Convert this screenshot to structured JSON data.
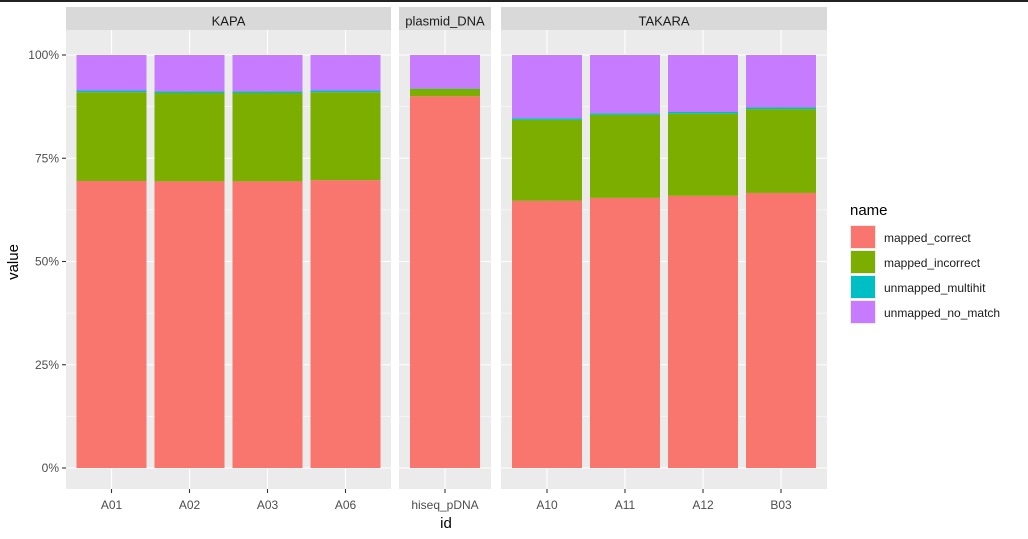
{
  "chart_data": {
    "type": "bar",
    "stacked": true,
    "position": "fill",
    "xlabel": "id",
    "ylabel": "value",
    "ylim": [
      0,
      1
    ],
    "y_ticks": [
      0,
      0.25,
      0.5,
      0.75,
      1.0
    ],
    "y_tick_labels": [
      "0%",
      "25%",
      "50%",
      "75%",
      "100%"
    ],
    "grid": true,
    "legend_position": "right",
    "legend": {
      "title": "name",
      "entries": [
        {
          "name": "mapped_correct",
          "color": "#F8766D"
        },
        {
          "name": "mapped_incorrect",
          "color": "#7CAE00"
        },
        {
          "name": "unmapped_multihit",
          "color": "#00BFC4"
        },
        {
          "name": "unmapped_no_match",
          "color": "#C77CFF"
        }
      ]
    },
    "facets": [
      {
        "label": "KAPA",
        "categories": [
          "A01",
          "A02",
          "A03",
          "A06"
        ],
        "series": [
          {
            "name": "mapped_correct",
            "values": [
              0.695,
              0.694,
              0.694,
              0.697
            ]
          },
          {
            "name": "mapped_incorrect",
            "values": [
              0.215,
              0.214,
              0.214,
              0.213
            ]
          },
          {
            "name": "unmapped_multihit",
            "values": [
              0.004,
              0.004,
              0.004,
              0.004
            ]
          },
          {
            "name": "unmapped_no_match",
            "values": [
              0.086,
              0.088,
              0.088,
              0.086
            ]
          }
        ]
      },
      {
        "label": "plasmid_DNA",
        "categories": [
          "hiseq_pDNA"
        ],
        "series": [
          {
            "name": "mapped_correct",
            "values": [
              0.9
            ]
          },
          {
            "name": "mapped_incorrect",
            "values": [
              0.018
            ]
          },
          {
            "name": "unmapped_multihit",
            "values": [
              0.001
            ]
          },
          {
            "name": "unmapped_no_match",
            "values": [
              0.081
            ]
          }
        ]
      },
      {
        "label": "TAKARA",
        "categories": [
          "A10",
          "A11",
          "A12",
          "B03"
        ],
        "series": [
          {
            "name": "mapped_correct",
            "values": [
              0.647,
              0.654,
              0.659,
              0.666
            ]
          },
          {
            "name": "mapped_incorrect",
            "values": [
              0.196,
              0.201,
              0.199,
              0.203
            ]
          },
          {
            "name": "unmapped_multihit",
            "values": [
              0.004,
              0.004,
              0.004,
              0.004
            ]
          },
          {
            "name": "unmapped_no_match",
            "values": [
              0.153,
              0.141,
              0.138,
              0.127
            ]
          }
        ]
      }
    ]
  }
}
